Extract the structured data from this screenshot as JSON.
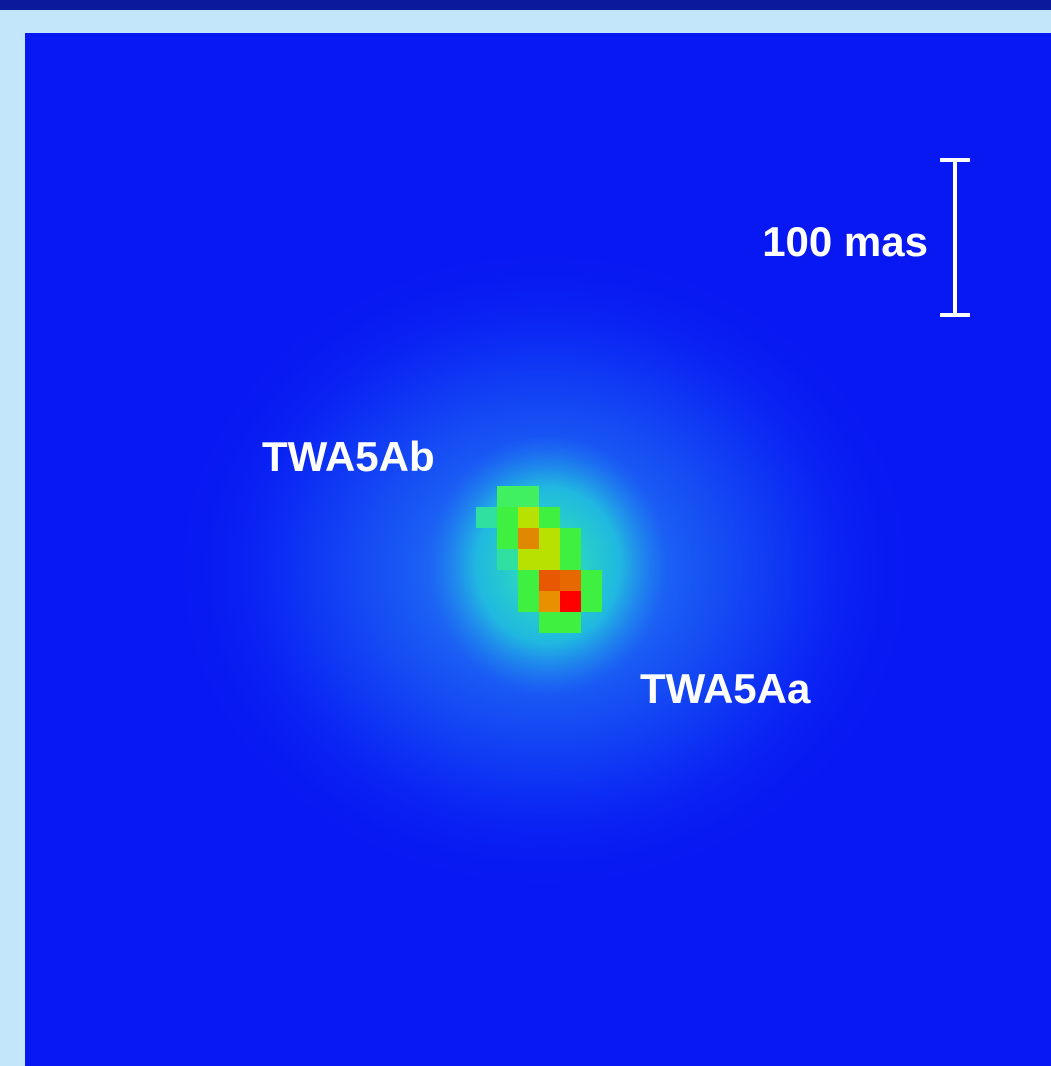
{
  "scale_bar": {
    "label": "100 mas"
  },
  "labels": [
    "TWA5Ab",
    "TWA5Aa"
  ]
}
